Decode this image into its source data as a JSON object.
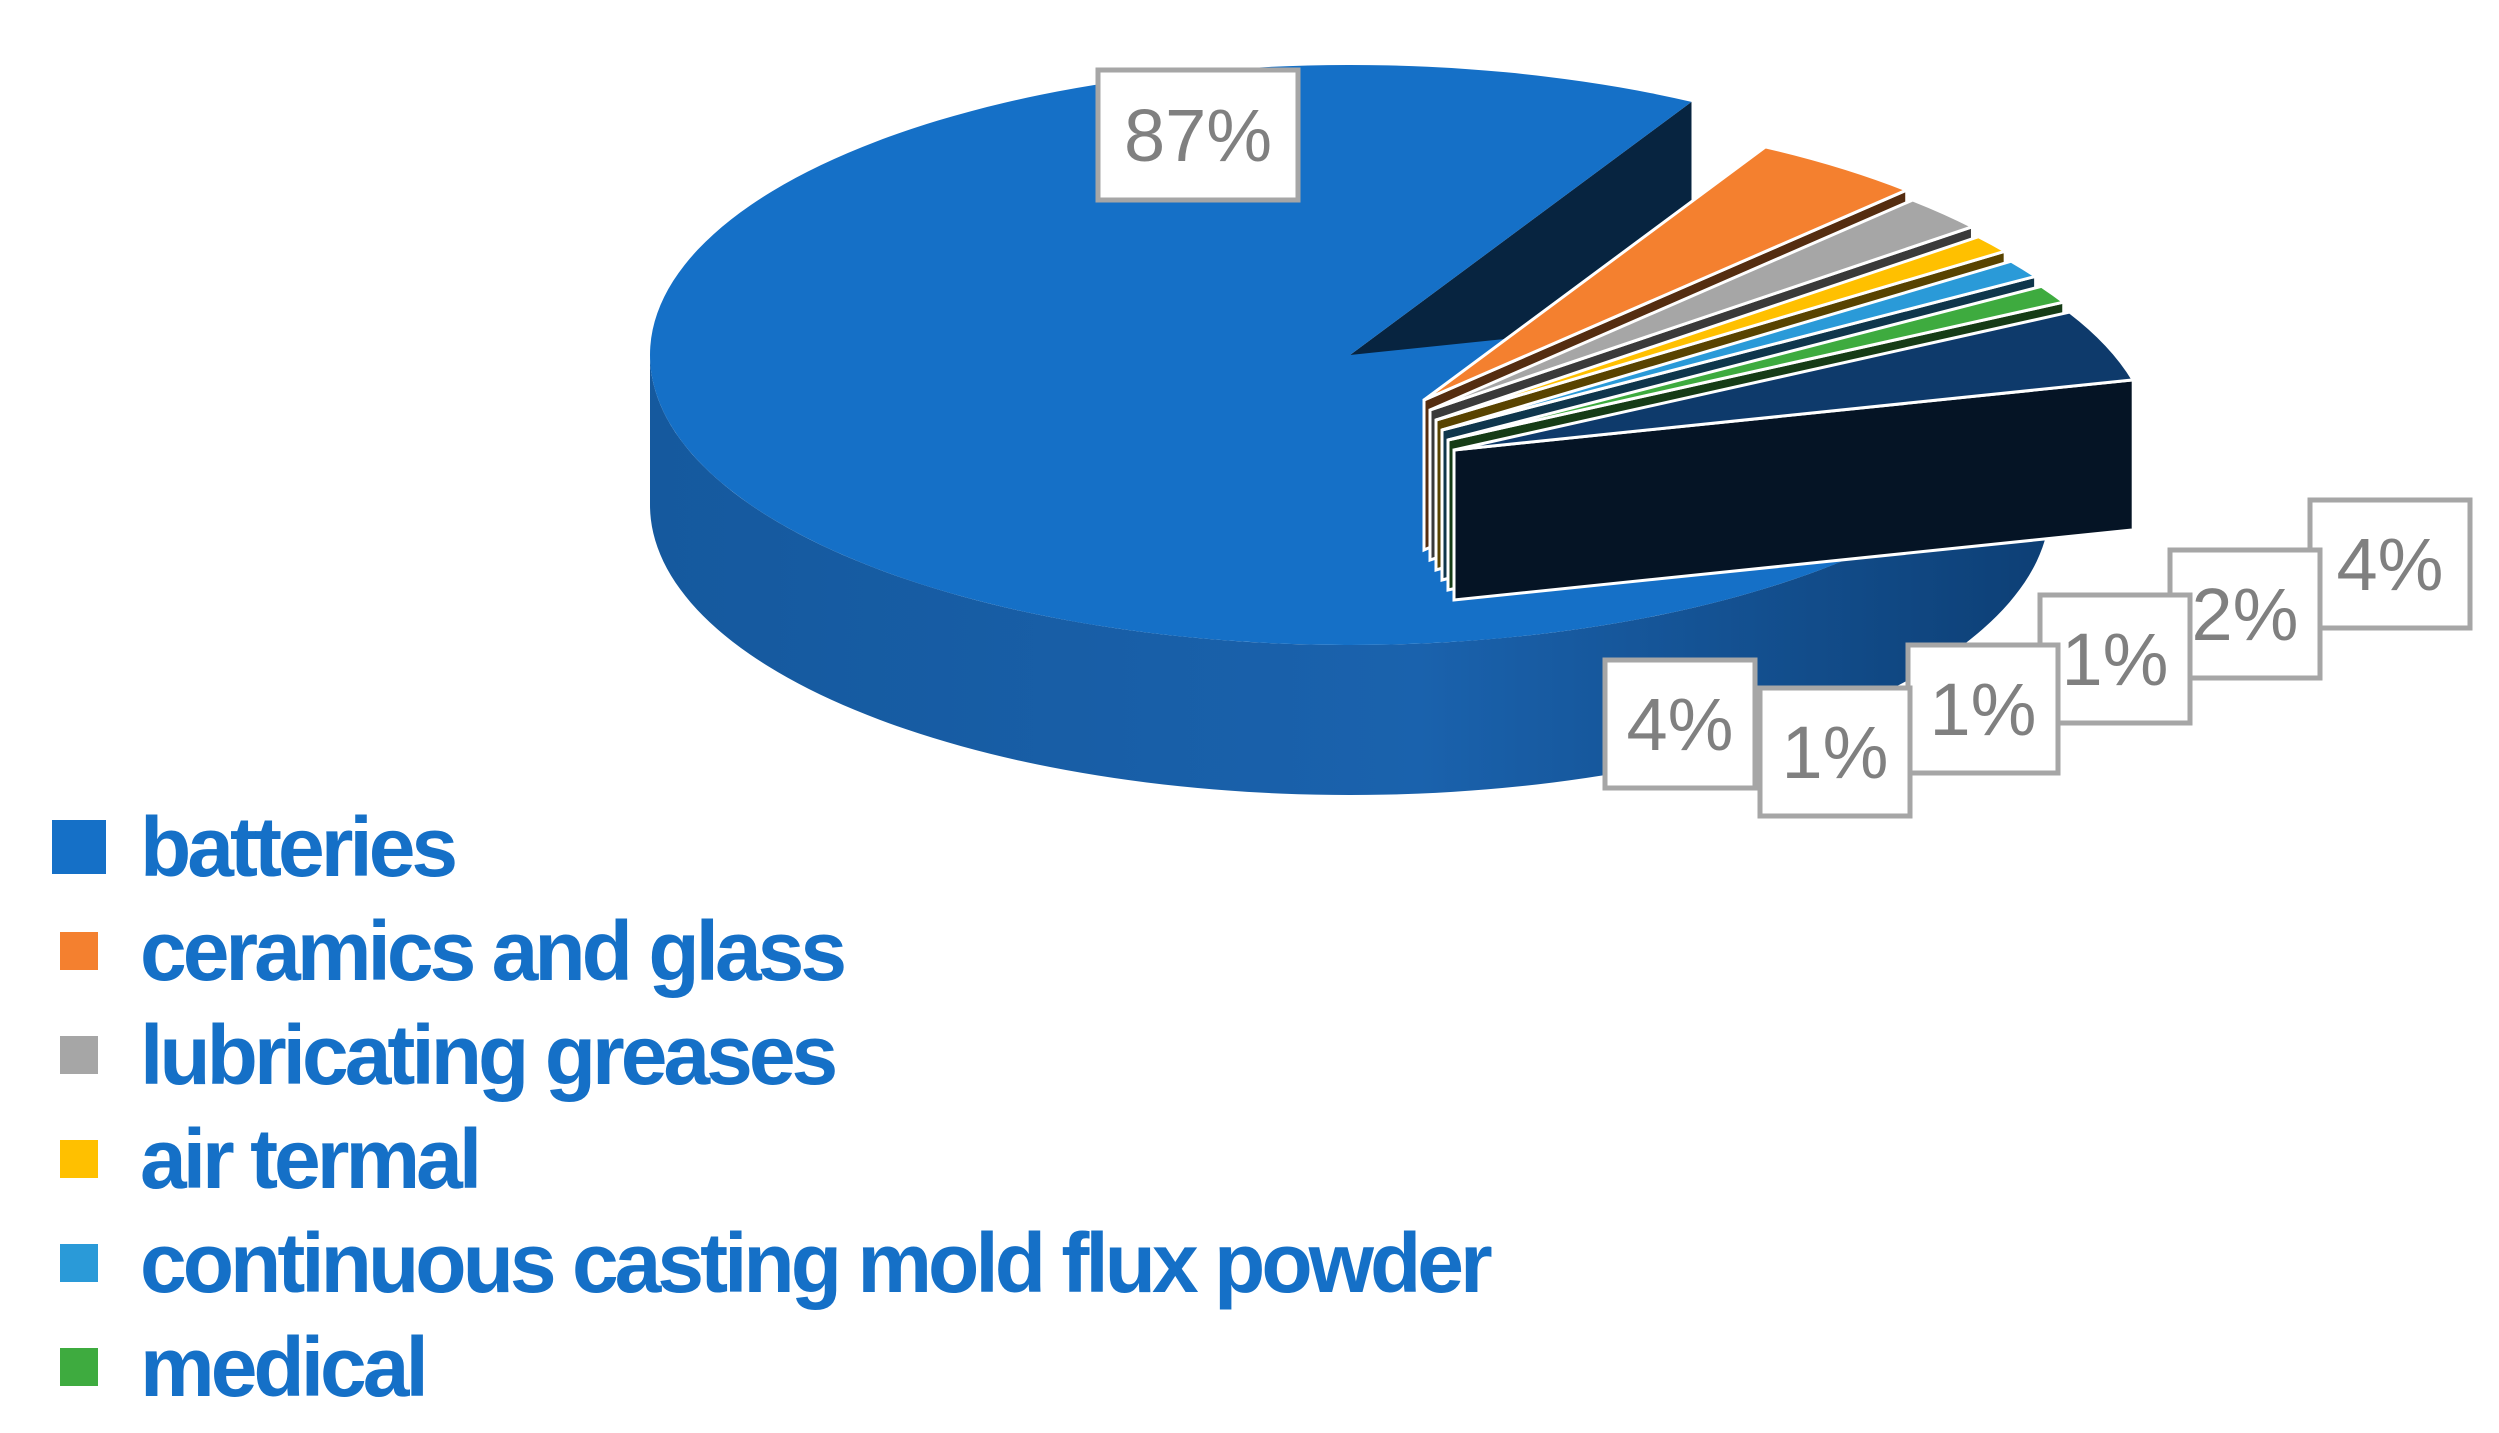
{
  "chart_data": {
    "type": "pie",
    "style": "3d-exploded",
    "title": "",
    "series": [
      {
        "name": "",
        "slices": [
          {
            "label": "batteries",
            "value": 87,
            "data_label": "87%",
            "color": "#1570c7"
          },
          {
            "label": "ceramics and glass",
            "value": 4,
            "data_label": "4%",
            "color": "#f4802f"
          },
          {
            "label": "lubricating greases",
            "value": 2,
            "data_label": "2%",
            "color": "#a6a6a6"
          },
          {
            "label": "air termal",
            "value": 1,
            "data_label": "1%",
            "color": "#ffc000"
          },
          {
            "label": "continuous casting mold flux powder",
            "value": 1,
            "data_label": "1%",
            "color": "#2a9ad8"
          },
          {
            "label": "medical",
            "value": 1,
            "data_label": "1%",
            "color": "#3eab3f"
          },
          {
            "label": "",
            "value": 4,
            "data_label": "4%",
            "color": "#0e3a6b"
          }
        ]
      }
    ],
    "legend_position": "bottom-left",
    "legend": [
      {
        "label": "batteries",
        "color": "#1570c7"
      },
      {
        "label": "ceramics and glass",
        "color": "#f4802f"
      },
      {
        "label": "lubricating greases",
        "color": "#a6a6a6"
      },
      {
        "label": "air termal",
        "color": "#ffc000"
      },
      {
        "label": "continuous casting mold flux powder",
        "color": "#2a9ad8"
      },
      {
        "label": "medical",
        "color": "#3eab3f"
      }
    ]
  }
}
